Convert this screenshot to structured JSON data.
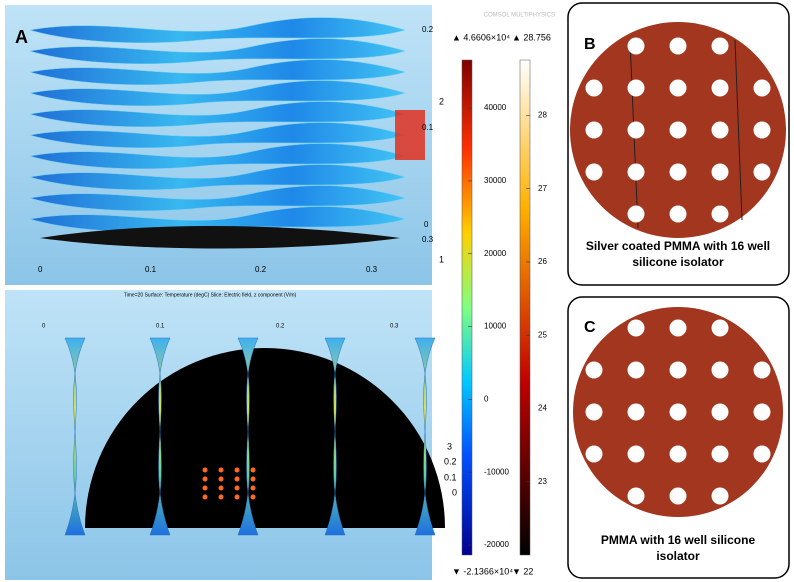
{
  "panel_a": {
    "label": "A",
    "top_view": {
      "x_ticks": [
        "0",
        "0.1",
        "0.2",
        "0.3"
      ],
      "z_ticks": [
        "0.2",
        "0.1",
        "0",
        "0.3"
      ],
      "side_ticks": [
        "2",
        "1"
      ]
    },
    "bottom_view": {
      "title": "Time=20   Surface: Temperature (degC)   Slice: Electric field, z component (V/m)",
      "x_ticks": [
        "0",
        "0.1",
        "0.2",
        "0.3"
      ],
      "z_ticks": [
        "3",
        "0.2",
        "0.1",
        "0"
      ]
    },
    "logo": "COMSOL MULTIPHYSICS",
    "colorbar_field": {
      "max": {
        "value": 46606,
        "label": "▲ 4.6606×10⁴"
      },
      "min": {
        "value": -21366,
        "label": "▼ -2.1366×10⁴"
      },
      "ticks": [
        40000,
        30000,
        20000,
        10000,
        0,
        -10000,
        -20000
      ]
    },
    "colorbar_temperature": {
      "max": {
        "value": 28.756,
        "label": "▲ 28.756"
      },
      "min": {
        "value": 22,
        "label": "▼ 22"
      },
      "ticks": [
        28,
        27,
        26,
        25,
        24,
        23
      ]
    }
  },
  "panel_b": {
    "label": "B",
    "caption": "Silver coated PMMA with 16 well silicone isolator"
  },
  "panel_c": {
    "label": "C",
    "caption": "PMMA with 16 well silicone isolator"
  }
}
